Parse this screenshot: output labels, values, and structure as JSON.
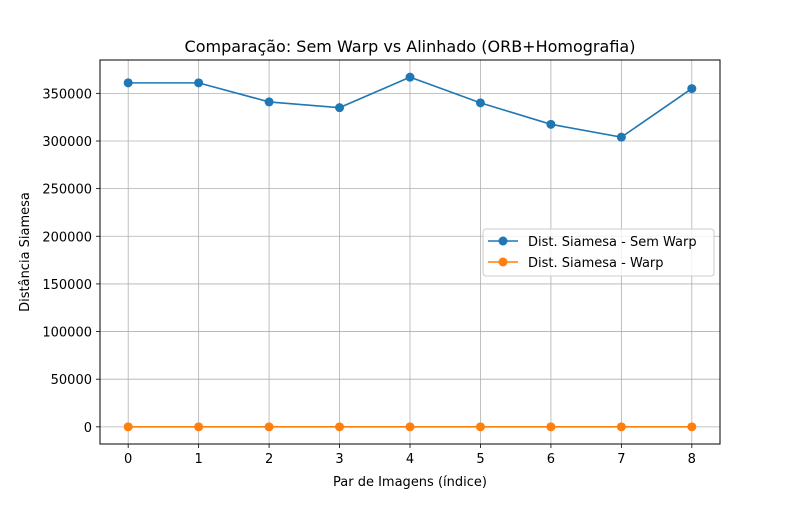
{
  "chart_data": {
    "type": "line",
    "title": "Comparação: Sem Warp vs Alinhado (ORB+Homografia)",
    "xlabel": "Par de Imagens (índice)",
    "ylabel": "Distância Siamesa",
    "x": [
      0,
      1,
      2,
      3,
      4,
      5,
      6,
      7,
      8
    ],
    "xticks": [
      0,
      1,
      2,
      3,
      4,
      5,
      6,
      7,
      8
    ],
    "yticks": [
      0,
      50000,
      100000,
      150000,
      200000,
      250000,
      300000,
      350000
    ],
    "xlim": [
      -0.4,
      8.4
    ],
    "ylim": [
      -18000,
      385000
    ],
    "grid": true,
    "legend_position": "center-right",
    "series": [
      {
        "name": "Dist. Siamesa - Sem Warp",
        "color": "#1f77b4",
        "marker": "circle",
        "values": [
          361000,
          361000,
          341000,
          335000,
          367000,
          340000,
          317500,
          304000,
          355000
        ]
      },
      {
        "name": "Dist. Siamesa - Warp",
        "color": "#ff7f0e",
        "marker": "circle",
        "values": [
          0,
          0,
          0,
          0,
          0,
          0,
          0,
          0,
          0
        ]
      }
    ]
  }
}
